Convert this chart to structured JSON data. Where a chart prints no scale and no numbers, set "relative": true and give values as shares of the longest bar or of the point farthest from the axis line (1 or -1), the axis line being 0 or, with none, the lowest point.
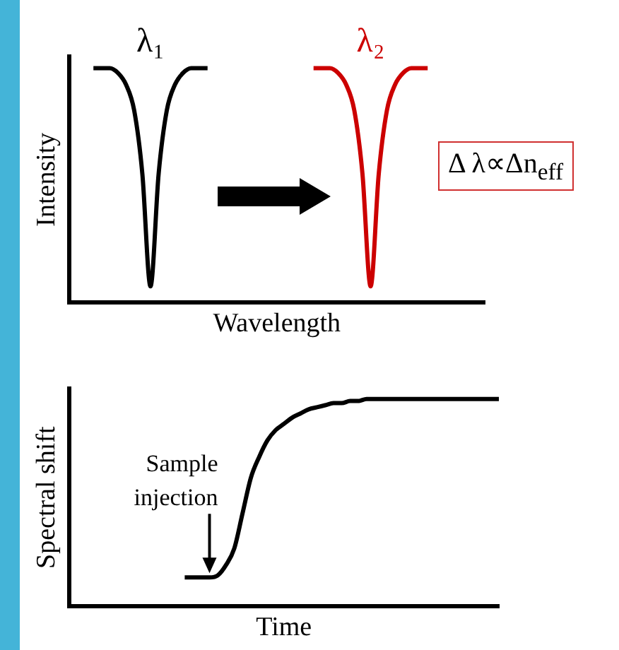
{
  "chart_data": [
    {
      "type": "line",
      "relative": true,
      "xlabel": "Wavelength",
      "ylabel": "Intensity",
      "categories": [
        null,
        null,
        null,
        null,
        null,
        null,
        null,
        null,
        null,
        null,
        null,
        null,
        null,
        null,
        null,
        null,
        null,
        null,
        null,
        null,
        null,
        null,
        null,
        null,
        null,
        null,
        null,
        null,
        null,
        null,
        null,
        null,
        null,
        null,
        null,
        null,
        null,
        null,
        null,
        null,
        null,
        null,
        null,
        null,
        null,
        null,
        null,
        null,
        null,
        null,
        null,
        null
      ],
      "series": [
        {
          "name": "λ₁",
          "color": "#000000",
          "values": [
            null,
            null,
            null,
            1,
            1,
            1,
            0.98,
            0.93,
            0.82,
            0.55,
            0.07,
            0.55,
            0.82,
            0.93,
            0.98,
            1,
            1,
            1,
            null,
            null,
            null,
            null,
            null,
            null,
            null,
            null,
            null,
            null,
            null,
            null,
            null,
            null,
            null,
            null,
            null,
            null,
            null,
            null,
            null,
            null,
            null,
            null,
            null,
            null,
            null,
            null,
            null,
            null,
            null,
            null,
            null,
            null
          ]
        },
        {
          "name": "λ₂",
          "color": "#cc0000",
          "values": [
            null,
            null,
            null,
            null,
            null,
            null,
            null,
            null,
            null,
            null,
            null,
            null,
            null,
            null,
            null,
            null,
            null,
            null,
            null,
            null,
            null,
            null,
            null,
            null,
            null,
            null,
            null,
            null,
            null,
            null,
            1,
            1,
            1,
            0.98,
            0.93,
            0.82,
            0.55,
            0.07,
            0.55,
            0.82,
            0.93,
            0.98,
            1,
            1,
            1,
            null,
            null,
            null,
            null,
            null,
            null,
            null
          ]
        }
      ],
      "annotations": [
        "Δ λ∝Δn$_{eff}$"
      ]
    },
    {
      "type": "line",
      "relative": true,
      "xlabel": "Time",
      "ylabel": "Spectral shift",
      "categories": [
        null,
        null,
        null,
        null,
        null,
        null,
        null,
        null,
        null,
        null,
        null,
        null,
        null,
        null,
        null,
        null,
        null,
        null,
        null,
        null,
        null,
        null,
        null,
        null,
        null,
        null,
        null,
        null,
        null,
        null,
        null,
        null,
        null,
        null,
        null,
        null,
        null,
        null,
        null,
        null,
        null,
        null,
        null,
        null,
        null,
        null,
        null,
        null,
        null,
        null,
        null,
        null,
        null
      ],
      "series": [
        {
          "color": "#000000",
          "values": [
            null,
            null,
            null,
            null,
            null,
            null,
            null,
            null,
            null,
            null,
            null,
            null,
            null,
            null,
            0.14,
            0.14,
            0.14,
            0.14,
            0.15,
            0.2,
            0.28,
            0.45,
            0.62,
            0.72,
            0.8,
            0.85,
            0.88,
            0.91,
            0.93,
            0.95,
            0.96,
            0.97,
            0.98,
            0.98,
            0.99,
            0.99,
            1,
            1,
            1,
            1,
            1,
            1,
            1,
            1,
            1,
            1,
            1,
            1,
            1,
            1,
            1,
            1,
            1
          ]
        }
      ],
      "annotations": [
        "Sample injection"
      ]
    }
  ]
}
